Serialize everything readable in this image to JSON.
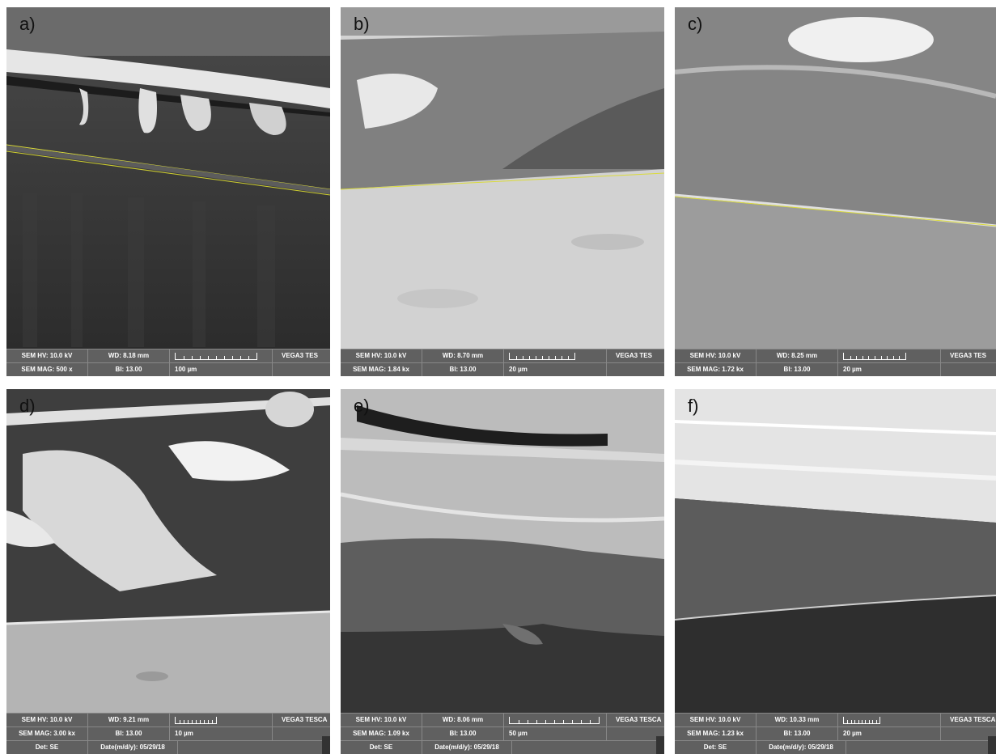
{
  "panels": [
    {
      "letter": "a)",
      "hv": "SEM HV: 10.0 kV",
      "wd": "WD: 8.18 mm",
      "brand": "VEGA3 TES",
      "mag": "SEM MAG: 500 x",
      "bi": "BI: 13.00",
      "scale": "100 µm",
      "det": "",
      "date": ""
    },
    {
      "letter": "b)",
      "hv": "SEM HV: 10.0 kV",
      "wd": "WD: 8.70 mm",
      "brand": "VEGA3 TES",
      "mag": "SEM MAG: 1.84 kx",
      "bi": "BI: 13.00",
      "scale": "20 µm",
      "det": "",
      "date": ""
    },
    {
      "letter": "c)",
      "hv": "SEM HV: 10.0 kV",
      "wd": "WD: 8.25 mm",
      "brand": "VEGA3 TES",
      "mag": "SEM MAG: 1.72 kx",
      "bi": "BI: 13.00",
      "scale": "20 µm",
      "det": "",
      "date": ""
    },
    {
      "letter": "d)",
      "hv": "SEM HV: 10.0 kV",
      "wd": "WD: 9.21 mm",
      "brand": "VEGA3 TESCA",
      "mag": "SEM MAG: 3.00 kx",
      "bi": "BI: 13.00",
      "scale": "10 µm",
      "det": "Det: SE",
      "date": "Date(m/d/y): 05/29/18"
    },
    {
      "letter": "e)",
      "hv": "SEM HV: 10.0 kV",
      "wd": "WD: 8.06 mm",
      "brand": "VEGA3 TESCA",
      "mag": "SEM MAG: 1.09 kx",
      "bi": "BI: 13.00",
      "scale": "50 µm",
      "det": "Det: SE",
      "date": "Date(m/d/y): 05/29/18"
    },
    {
      "letter": "f)",
      "hv": "SEM HV: 10.0 kV",
      "wd": "WD: 10.33 mm",
      "brand": "VEGA3 TESCA",
      "mag": "SEM MAG: 1.23 kx",
      "bi": "BI: 13.00",
      "scale": "20 µm",
      "det": "Det: SE",
      "date": "Date(m/d/y): 05/29/18"
    }
  ]
}
